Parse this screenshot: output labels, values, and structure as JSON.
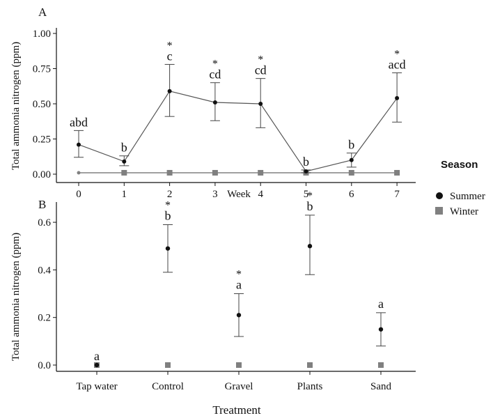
{
  "colors": {
    "summer": "#111111",
    "winter": "#808080",
    "errorbar": "#444444",
    "axis": "#111111",
    "line": "#555555"
  },
  "legend": {
    "title": "Season",
    "items": [
      {
        "label": "Summer",
        "marker": "circle",
        "color": "#111111"
      },
      {
        "label": "Winter",
        "marker": "square",
        "color": "#808080"
      }
    ]
  },
  "chart_data": [
    {
      "panel": "A",
      "type": "line",
      "xlabel": "Week",
      "ylabel": "Total ammonia nitrogen (ppm)",
      "x_ticks": [
        "0",
        "1",
        "2",
        "3",
        "4",
        "5",
        "6",
        "7"
      ],
      "y_ticks": [
        "0.00",
        "0.25",
        "0.50",
        "0.75",
        "1.00"
      ],
      "ylim": [
        0,
        1.0
      ],
      "series": [
        {
          "name": "Summer",
          "x": [
            0,
            1,
            2,
            3,
            4,
            5,
            6,
            7
          ],
          "values": [
            0.21,
            0.09,
            0.59,
            0.51,
            0.5,
            0.02,
            0.1,
            0.54
          ],
          "err_low": [
            0.12,
            0.06,
            0.41,
            0.38,
            0.33,
            0.01,
            0.05,
            0.37
          ],
          "err_high": [
            0.31,
            0.13,
            0.78,
            0.65,
            0.68,
            0.03,
            0.15,
            0.72
          ],
          "letters": [
            "abd",
            "b",
            "c",
            "cd",
            "cd",
            "b",
            "b",
            "acd"
          ],
          "stars": [
            "",
            "",
            "*",
            "*",
            "*",
            "",
            "",
            "*"
          ]
        },
        {
          "name": "Winter",
          "x": [
            0,
            1,
            2,
            3,
            4,
            5,
            6,
            7
          ],
          "values": [
            0.01,
            0.01,
            0.01,
            0.01,
            0.01,
            0.01,
            0.01,
            0.01
          ]
        }
      ]
    },
    {
      "panel": "B",
      "type": "scatter",
      "xlabel": "Treatment",
      "ylabel": "Total ammonia nitrogen (ppm)",
      "categories": [
        "Tap water",
        "Control",
        "Gravel",
        "Plants",
        "Sand"
      ],
      "y_ticks": [
        "0.0",
        "0.2",
        "0.4",
        "0.6"
      ],
      "ylim": [
        0,
        0.65
      ],
      "series": [
        {
          "name": "Summer",
          "values": [
            0.0,
            0.49,
            0.21,
            0.5,
            0.15
          ],
          "err_low": [
            0.0,
            0.39,
            0.12,
            0.38,
            0.08
          ],
          "err_high": [
            0.0,
            0.59,
            0.3,
            0.63,
            0.22
          ],
          "letters": [
            "a",
            "b",
            "a",
            "b",
            "a"
          ],
          "stars": [
            "",
            "*",
            "*",
            "*",
            ""
          ]
        },
        {
          "name": "Winter",
          "values": [
            0.0,
            0.0,
            0.0,
            0.0,
            0.0
          ]
        }
      ]
    }
  ]
}
